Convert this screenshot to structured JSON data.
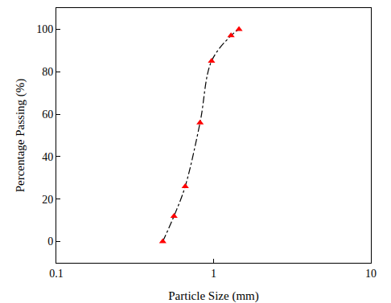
{
  "chart_data": {
    "type": "line",
    "x_label": "Particle Size (mm)",
    "y_label": "Percentage Passing (%)",
    "x": [
      0.475,
      0.56,
      0.66,
      0.82,
      0.97,
      1.29,
      1.45
    ],
    "values": [
      0,
      12,
      26,
      56,
      85,
      97,
      100
    ],
    "color": "#ff0000",
    "marker": "triangle-up",
    "line_style": "dashdot",
    "log": "x",
    "xlim": [
      0.1,
      10
    ],
    "xticks": [
      0.1,
      1,
      10
    ],
    "ylim": [
      -10,
      110
    ],
    "yticks": [
      0,
      20,
      40,
      60,
      80,
      100
    ],
    "grid": false
  }
}
